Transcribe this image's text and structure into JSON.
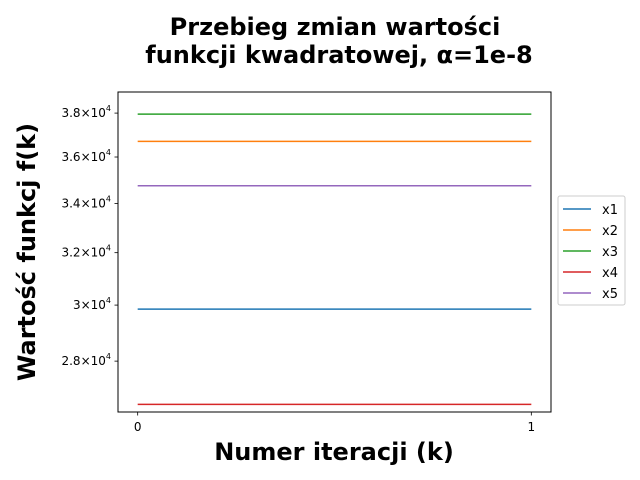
{
  "chart_data": {
    "type": "line",
    "title_line1": "Przebieg zmian wartości",
    "title_line2": "funkcji kwadratowej, α=1e-8",
    "xlabel": "Numer iteracji (k)",
    "ylabel": "Wartość funkcj f(k)",
    "x": [
      0,
      1
    ],
    "x_ticks": [
      0,
      1
    ],
    "x_tick_labels": [
      "0",
      "1"
    ],
    "xlim": [
      -0.05,
      1.05
    ],
    "y_scale": "log",
    "ylim": [
      26300,
      39000
    ],
    "y_ticks": [
      {
        "value": 28000,
        "mantissa": "2.8",
        "base": "10",
        "exp": "4"
      },
      {
        "value": 30000,
        "mantissa": "3",
        "base": "10",
        "exp": "4"
      },
      {
        "value": 32000,
        "mantissa": "3.2",
        "base": "10",
        "exp": "4"
      },
      {
        "value": 34000,
        "mantissa": "3.4",
        "base": "10",
        "exp": "4"
      },
      {
        "value": 36000,
        "mantissa": "3.6",
        "base": "10",
        "exp": "4"
      },
      {
        "value": 38000,
        "mantissa": "3.8",
        "base": "10",
        "exp": "4"
      }
    ],
    "grid": false,
    "legend_position": "center right, outside",
    "series": [
      {
        "name": "x1",
        "color": "#1f77b4",
        "values": [
          29850,
          29850
        ]
      },
      {
        "name": "x2",
        "color": "#ff7f0e",
        "values": [
          36700,
          36700
        ]
      },
      {
        "name": "x3",
        "color": "#2ca02c",
        "values": [
          37950,
          37950
        ]
      },
      {
        "name": "x4",
        "color": "#d62728",
        "values": [
          26550,
          26550
        ]
      },
      {
        "name": "x5",
        "color": "#9467bd",
        "values": [
          34750,
          34750
        ]
      }
    ]
  }
}
